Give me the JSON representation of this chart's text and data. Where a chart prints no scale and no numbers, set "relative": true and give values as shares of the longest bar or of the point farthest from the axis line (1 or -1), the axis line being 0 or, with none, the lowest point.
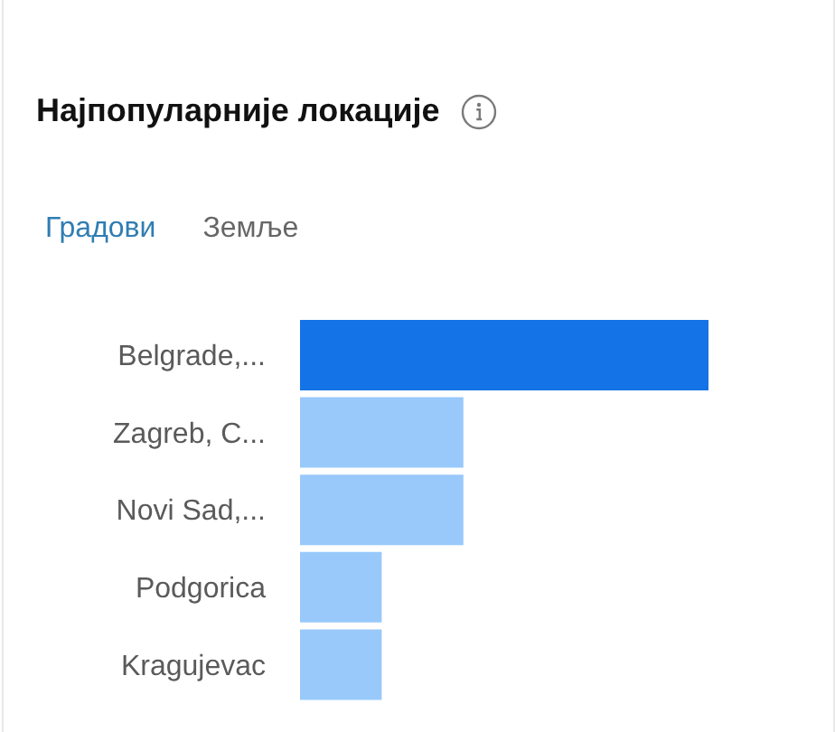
{
  "chart_data": {
    "type": "bar",
    "orientation": "horizontal",
    "relative": true,
    "title": "Најпопуларније локације",
    "annotations": [
      "Градови",
      "Земље"
    ],
    "categories": [
      "Belgrade,...",
      "Zagreb, C...",
      "Novi Sad,...",
      "Podgorica",
      "Kragujevac"
    ],
    "values": [
      1,
      0.4,
      0.4,
      0.2,
      0.2
    ],
    "colors": [
      "#1473e6",
      "#99c9fb",
      "#99c9fb",
      "#99c9fb",
      "#99c9fb"
    ]
  }
}
